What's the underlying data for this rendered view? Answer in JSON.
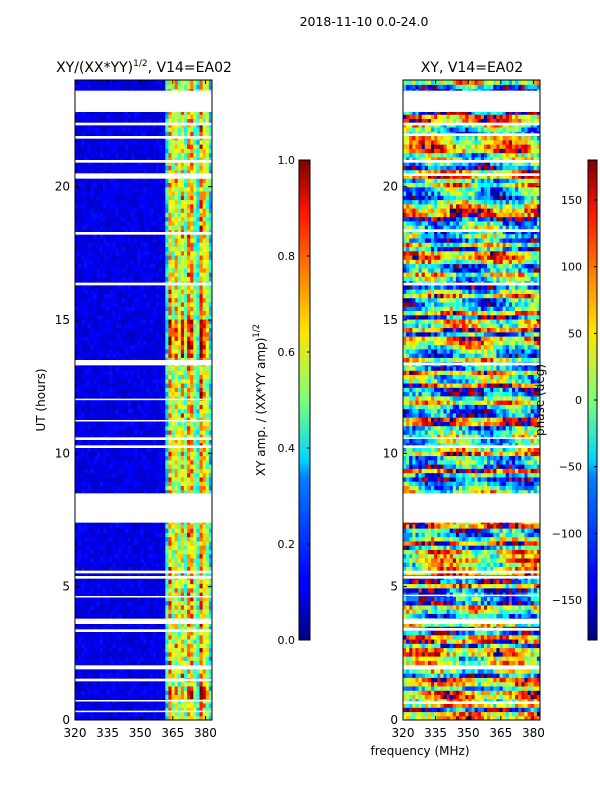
{
  "figure": {
    "suptitle": "2018-11-10 0.0-24.0"
  },
  "chart_data": [
    {
      "type": "heatmap",
      "title": "XY/(XX*YY)$^{1/2}$, V14=EA02",
      "title_main": "XY/(XX*YY)",
      "title_sup": "1/2",
      "title_rest": ", V14=EA02",
      "xlabel": "",
      "ylabel": "UT (hours)",
      "xlim": [
        320,
        383
      ],
      "ylim": [
        0,
        24
      ],
      "xticks": [
        320,
        335,
        350,
        365,
        380
      ],
      "yticks": [
        0,
        5,
        10,
        15,
        20
      ],
      "colorbar": {
        "label": "XY amp. / (XX*YY amp)$^{1/2}$",
        "label_main": "XY amp. / (XX*YY amp)",
        "label_sup": "1/2",
        "range": [
          0.0,
          1.0
        ],
        "ticks": [
          "0.0",
          "0.2",
          "0.4",
          "0.6",
          "0.8",
          "1.0"
        ],
        "tick_values": [
          0.0,
          0.2,
          0.4,
          0.6,
          0.8,
          1.0
        ],
        "colormap": "jet"
      },
      "flagged_ut_ranges": [
        [
          0.3,
          0.35
        ],
        [
          0.7,
          0.75
        ],
        [
          1.45,
          1.55
        ],
        [
          1.9,
          2.05
        ],
        [
          3.3,
          3.4
        ],
        [
          3.6,
          3.8
        ],
        [
          4.6,
          4.65
        ],
        [
          5.3,
          5.4
        ],
        [
          5.5,
          5.6
        ],
        [
          7.4,
          8.5
        ],
        [
          10.2,
          10.3
        ],
        [
          10.5,
          10.6
        ],
        [
          11.2,
          11.25
        ],
        [
          12.0,
          12.05
        ],
        [
          13.3,
          13.5
        ],
        [
          16.3,
          16.4
        ],
        [
          18.2,
          18.3
        ],
        [
          20.3,
          20.5
        ],
        [
          20.9,
          21.0
        ],
        [
          21.8,
          21.9
        ],
        [
          22.3,
          22.4
        ],
        [
          22.8,
          23.6
        ]
      ],
      "high_amplitude_channels_mhz": [
        364,
        366,
        369,
        372,
        374,
        378,
        380
      ]
    },
    {
      "type": "heatmap",
      "title": "XY, V14=EA02",
      "xlabel": "frequency (MHz)",
      "ylabel": "",
      "xlim": [
        320,
        383
      ],
      "ylim": [
        0,
        24
      ],
      "xticks": [
        320,
        335,
        350,
        365,
        380
      ],
      "yticks": [
        0,
        5,
        10,
        15,
        20
      ],
      "colorbar": {
        "label": "phase (deg)",
        "range": [
          -180,
          180
        ],
        "ticks": [
          "−150",
          "−100",
          "−50",
          "0",
          "50",
          "100",
          "150"
        ],
        "tick_values": [
          -150,
          -100,
          -50,
          0,
          50,
          100,
          150
        ],
        "colormap": "jet"
      },
      "flagged_ut_ranges": [
        [
          0.6,
          0.7
        ],
        [
          1.9,
          2.05
        ],
        [
          3.35,
          3.45
        ],
        [
          3.6,
          3.8
        ],
        [
          4.65,
          4.7
        ],
        [
          5.3,
          5.4
        ],
        [
          5.5,
          5.6
        ],
        [
          7.4,
          8.5
        ],
        [
          10.2,
          10.3
        ],
        [
          10.55,
          10.6
        ],
        [
          13.3,
          13.4
        ],
        [
          16.3,
          16.4
        ],
        [
          18.3,
          18.4
        ],
        [
          20.4,
          20.5
        ],
        [
          20.9,
          21.0
        ],
        [
          21.9,
          22.0
        ],
        [
          22.3,
          22.4
        ],
        [
          22.8,
          23.6
        ]
      ]
    }
  ]
}
